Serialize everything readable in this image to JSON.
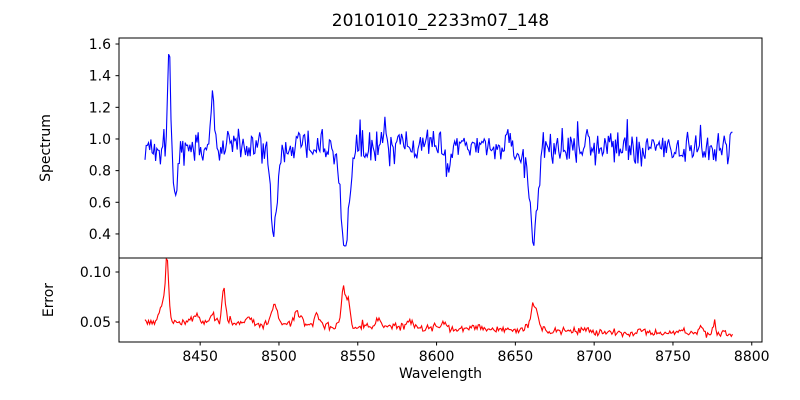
{
  "chart_title": "20101010_2233m07_148",
  "xlabel": "Wavelength",
  "colors": {
    "spectrum_line": "#0000ff",
    "error_line": "#ff0000",
    "axis": "#000000",
    "background": "#ffffff"
  },
  "x_axis": {
    "label": "Wavelength",
    "ticks": [
      {
        "value": 8450,
        "label": "8450"
      },
      {
        "value": 8500,
        "label": "8500"
      },
      {
        "value": 8550,
        "label": "8550"
      },
      {
        "value": 8600,
        "label": "8600"
      },
      {
        "value": 8650,
        "label": "8650"
      },
      {
        "value": 8700,
        "label": "8700"
      },
      {
        "value": 8750,
        "label": "8750"
      },
      {
        "value": 8800,
        "label": "8800"
      }
    ]
  },
  "panels": {
    "spectrum": {
      "ylabel": "Spectrum"
    },
    "error": {
      "ylabel": "Error"
    }
  },
  "chart_data": [
    {
      "id": "spectrum",
      "type": "line",
      "title": "20101010_2233m07_148",
      "ylabel": "Spectrum",
      "color": "#0000ff",
      "grid": false,
      "legend": "none",
      "x_start": 8415,
      "x_end": 8788,
      "x_step": 0.75,
      "xlim": [
        8398.5,
        8806.5
      ],
      "ylim": [
        0.248,
        1.638
      ],
      "yticks": [
        {
          "value": 0.4,
          "label": "0.4"
        },
        {
          "value": 0.6,
          "label": "0.6"
        },
        {
          "value": 0.8,
          "label": "0.8"
        },
        {
          "value": 1.0,
          "label": "1.0"
        },
        {
          "value": 1.2,
          "label": "1.2"
        },
        {
          "value": 1.4,
          "label": "1.4"
        },
        {
          "value": 1.6,
          "label": "1.6"
        }
      ],
      "baseline_start": 0.95,
      "baseline_end": 0.95,
      "noise_amp": 0.13,
      "spike_prob": 0.06,
      "spike_scale": 0.25,
      "seed": 1337,
      "features": [
        {
          "center": 8430.3,
          "amplitude": 0.63,
          "sigma": 1.1,
          "note": "narrow emission spike, peak ~1.58"
        },
        {
          "center": 8434.2,
          "amplitude": -0.38,
          "sigma": 1.5,
          "note": "dip to ~0.58 just after spike"
        },
        {
          "center": 8458.0,
          "amplitude": 0.38,
          "sigma": 0.9,
          "note": "narrow spike to ~1.35"
        },
        {
          "center": 8497.0,
          "amplitude": -0.51,
          "sigma": 2.2,
          "note": "absorption line, minimum ~0.45"
        },
        {
          "center": 8542.0,
          "amplitude": -0.63,
          "sigma": 2.8,
          "note": "deepest absorption line, minimum ~0.33"
        },
        {
          "center": 8567.0,
          "amplitude": 0.22,
          "sigma": 0.8,
          "note": "small spike to ~1.2"
        },
        {
          "center": 8607.0,
          "amplitude": -0.12,
          "sigma": 1.5,
          "note": "shallow dip ~0.8"
        },
        {
          "center": 8661.5,
          "amplitude": -0.58,
          "sigma": 2.4,
          "note": "absorption line, minimum ~0.38"
        }
      ]
    },
    {
      "id": "error",
      "type": "line",
      "ylabel": "Error",
      "color": "#ff0000",
      "grid": false,
      "legend": "none",
      "x_start": 8415,
      "x_end": 8788,
      "x_step": 0.75,
      "xlim": [
        8398.5,
        8806.5
      ],
      "ylim": [
        0.03,
        0.114
      ],
      "yticks": [
        {
          "value": 0.05,
          "label": "0.05"
        },
        {
          "value": 0.1,
          "label": "0.10"
        }
      ],
      "baseline_start": 0.05,
      "baseline_end": 0.0375,
      "noise_amp": 0.0045,
      "spike_prob": 0.05,
      "spike_scale": 0.012,
      "seed": 2024,
      "features": [
        {
          "center": 8426.0,
          "amplitude": 0.018,
          "sigma": 2.0,
          "note": "shoulder of main error spike"
        },
        {
          "center": 8429.0,
          "amplitude": 0.057,
          "sigma": 1.1,
          "note": "tallest error spike ~0.11"
        },
        {
          "center": 8447.0,
          "amplitude": 0.008,
          "sigma": 2.5,
          "note": ""
        },
        {
          "center": 8458.0,
          "amplitude": 0.01,
          "sigma": 1.5,
          "note": ""
        },
        {
          "center": 8465.0,
          "amplitude": 0.038,
          "sigma": 1.1,
          "note": "spike to ~0.09"
        },
        {
          "center": 8481.0,
          "amplitude": 0.007,
          "sigma": 1.5,
          "note": ""
        },
        {
          "center": 8497.0,
          "amplitude": 0.02,
          "sigma": 2.0,
          "note": "bump ~0.07 at first absorption line"
        },
        {
          "center": 8512.0,
          "amplitude": 0.012,
          "sigma": 2.5,
          "note": ""
        },
        {
          "center": 8524.0,
          "amplitude": 0.01,
          "sigma": 1.5,
          "note": ""
        },
        {
          "center": 8541.0,
          "amplitude": 0.04,
          "sigma": 1.3,
          "note": "double spike ~0.095 at deepest absorption line"
        },
        {
          "center": 8544.0,
          "amplitude": 0.028,
          "sigma": 1.0,
          "note": ""
        },
        {
          "center": 8563.0,
          "amplitude": 0.008,
          "sigma": 1.5,
          "note": ""
        },
        {
          "center": 8583.0,
          "amplitude": 0.007,
          "sigma": 2.0,
          "note": ""
        },
        {
          "center": 8605.0,
          "amplitude": 0.007,
          "sigma": 1.5,
          "note": ""
        },
        {
          "center": 8627.0,
          "amplitude": 0.005,
          "sigma": 1.5,
          "note": ""
        },
        {
          "center": 8662.0,
          "amplitude": 0.026,
          "sigma": 2.2,
          "note": "bump ~0.065 at third absorption line"
        },
        {
          "center": 8695.0,
          "amplitude": 0.004,
          "sigma": 2.0,
          "note": ""
        },
        {
          "center": 8730.0,
          "amplitude": 0.004,
          "sigma": 2.0,
          "note": ""
        },
        {
          "center": 8755.0,
          "amplitude": 0.006,
          "sigma": 1.5,
          "note": ""
        },
        {
          "center": 8768.0,
          "amplitude": 0.008,
          "sigma": 1.2,
          "note": ""
        },
        {
          "center": 8776.0,
          "amplitude": 0.007,
          "sigma": 1.2,
          "note": ""
        }
      ]
    }
  ]
}
